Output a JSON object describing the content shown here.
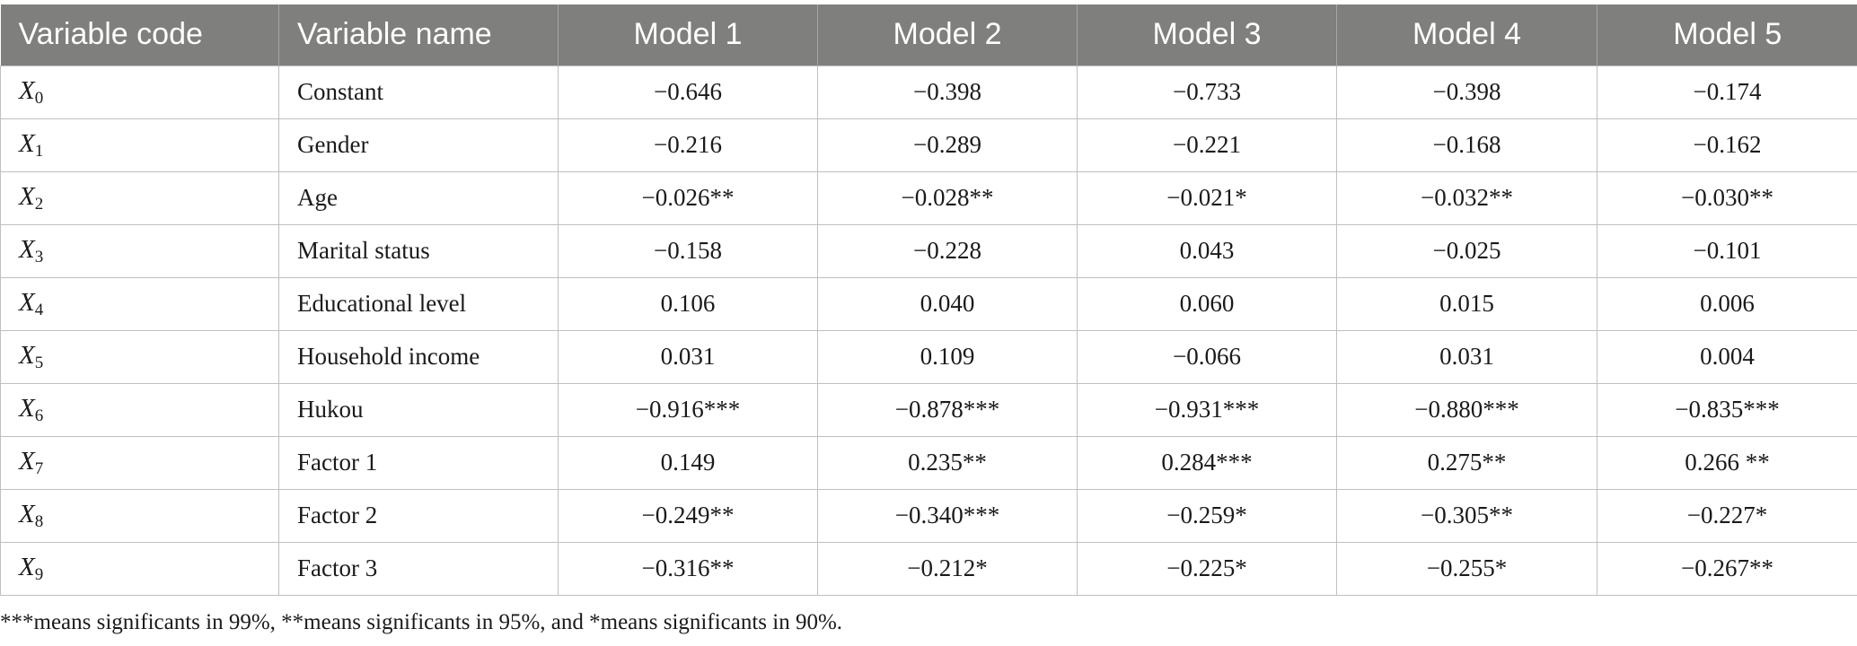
{
  "table": {
    "headers": [
      "Variable code",
      "Variable name",
      "Model 1",
      "Model 2",
      "Model 3",
      "Model 4",
      "Model 5"
    ],
    "rows": [
      {
        "code": "X",
        "sub": "0",
        "name": "Constant",
        "values": [
          "−0.646",
          "−0.398",
          "−0.733",
          "−0.398",
          "−0.174"
        ]
      },
      {
        "code": "X",
        "sub": "1",
        "name": "Gender",
        "values": [
          "−0.216",
          "−0.289",
          "−0.221",
          "−0.168",
          "−0.162"
        ]
      },
      {
        "code": "X",
        "sub": "2",
        "name": "Age",
        "values": [
          "−0.026**",
          "−0.028**",
          "−0.021*",
          "−0.032**",
          "−0.030**"
        ]
      },
      {
        "code": "X",
        "sub": "3",
        "name": "Marital status",
        "values": [
          "−0.158",
          "−0.228",
          "0.043",
          "−0.025",
          "−0.101"
        ]
      },
      {
        "code": "X",
        "sub": "4",
        "name": "Educational level",
        "values": [
          "0.106",
          "0.040",
          "0.060",
          "0.015",
          "0.006"
        ]
      },
      {
        "code": "X",
        "sub": "5",
        "name": "Household income",
        "values": [
          "0.031",
          "0.109",
          "−0.066",
          "0.031",
          "0.004"
        ]
      },
      {
        "code": "X",
        "sub": "6",
        "name": "Hukou",
        "values": [
          "−0.916***",
          "−0.878***",
          "−0.931***",
          "−0.880***",
          "−0.835***"
        ]
      },
      {
        "code": "X",
        "sub": "7",
        "name": "Factor 1",
        "values": [
          "0.149",
          "0.235**",
          "0.284***",
          "0.275**",
          "0.266 **"
        ]
      },
      {
        "code": "X",
        "sub": "8",
        "name": "Factor 2",
        "values": [
          "−0.249**",
          "−0.340***",
          "−0.259*",
          "−0.305**",
          "−0.227*"
        ]
      },
      {
        "code": "X",
        "sub": "9",
        "name": "Factor 3",
        "values": [
          "−0.316**",
          "−0.212*",
          "−0.225*",
          "−0.255*",
          "−0.267**"
        ]
      }
    ]
  },
  "footnote": "***means significants in 99%, **means significants in 95%, and *means significants in 90%."
}
